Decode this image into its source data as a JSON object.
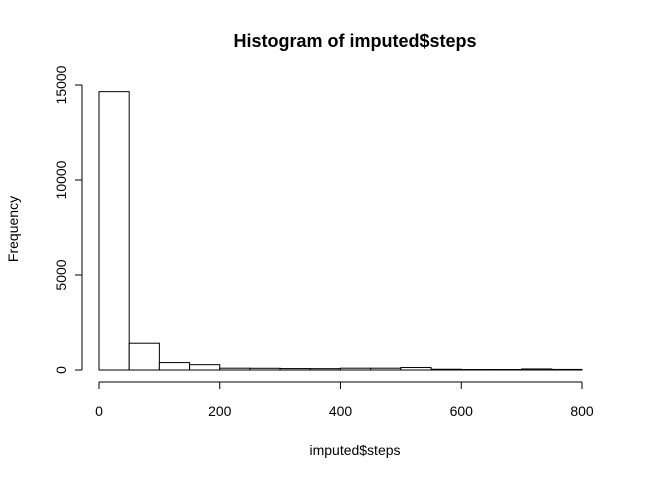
{
  "chart_data": {
    "type": "bar",
    "title": "Histogram of imputed$steps",
    "xlabel": "imputed$steps",
    "ylabel": "Frequency",
    "bin_edges": [
      0,
      50,
      100,
      150,
      200,
      250,
      300,
      350,
      400,
      450,
      500,
      550,
      600,
      650,
      700,
      750,
      800
    ],
    "values": [
      14650,
      1410,
      390,
      280,
      95,
      90,
      75,
      70,
      95,
      95,
      130,
      40,
      25,
      25,
      55,
      30
    ],
    "xlim": [
      0,
      850
    ],
    "ylim": [
      0,
      15000
    ],
    "xticks": [
      "0",
      "200",
      "400",
      "600",
      "800"
    ],
    "yticks": [
      "0",
      "5000",
      "10000",
      "15000"
    ],
    "bar_fill": "#ffffff",
    "bar_stroke": "#000000",
    "grid": false,
    "legend": "none"
  }
}
